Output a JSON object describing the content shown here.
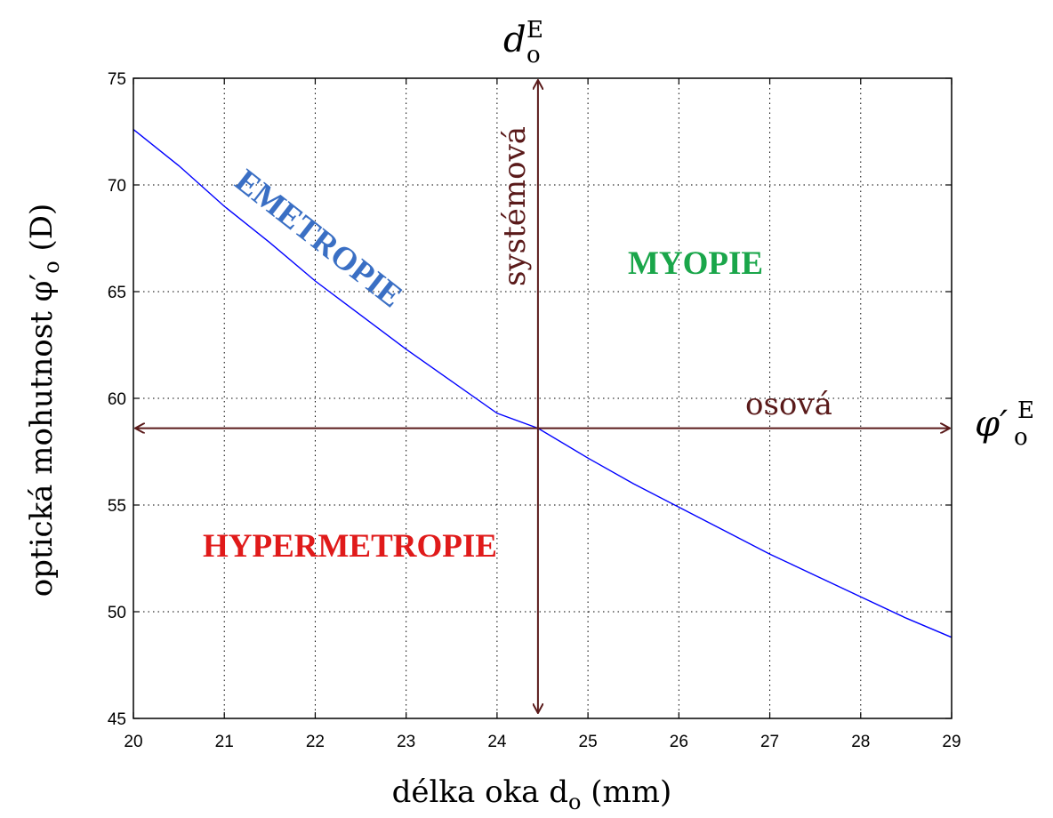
{
  "chart_data": {
    "type": "line",
    "xlabel": "délka oka d",
    "xlabel_sub": "o",
    "xlabel_unit": " (mm)",
    "ylabel": "optická mohutnost φ′",
    "ylabel_sub": "o",
    "ylabel_unit": " (D)",
    "xlim": [
      20,
      29
    ],
    "ylim": [
      45,
      75
    ],
    "xticks": [
      "20",
      "21",
      "22",
      "23",
      "24",
      "25",
      "26",
      "27",
      "28",
      "29"
    ],
    "yticks": [
      "45",
      "50",
      "55",
      "60",
      "65",
      "70",
      "75"
    ],
    "grid": true,
    "series": [
      {
        "color": "#0000ff",
        "x": [
          20,
          20.5,
          21,
          21.5,
          22,
          22.5,
          23,
          23.5,
          24,
          24.45,
          25,
          25.5,
          26,
          26.5,
          27,
          27.5,
          28,
          28.5,
          29
        ],
        "y": [
          72.6,
          70.9,
          69.0,
          67.3,
          65.5,
          63.9,
          62.3,
          60.8,
          59.3,
          58.6,
          57.2,
          56.0,
          54.9,
          53.8,
          52.7,
          51.7,
          50.7,
          49.7,
          48.8
        ]
      }
    ],
    "reference_lines": {
      "vertical_x": 24.45,
      "horizontal_y": 58.6,
      "color": "#5a1a1a"
    },
    "annotations": {
      "emetropie": {
        "text": "EMETROPIE",
        "color": "#3a6fc4"
      },
      "myopie": {
        "text": "MYOPIE",
        "color": "#1aa64a"
      },
      "hypermetropie": {
        "text": "HYPERMETROPIE",
        "color": "#e01a1a"
      },
      "systemova": {
        "text": "systémová"
      },
      "osova": {
        "text": "osová"
      },
      "d_marker": {
        "base": "d",
        "sub": "o",
        "sup": "E"
      },
      "phi_marker": {
        "base": "φ′",
        "sub": "o",
        "sup": "E"
      }
    }
  }
}
